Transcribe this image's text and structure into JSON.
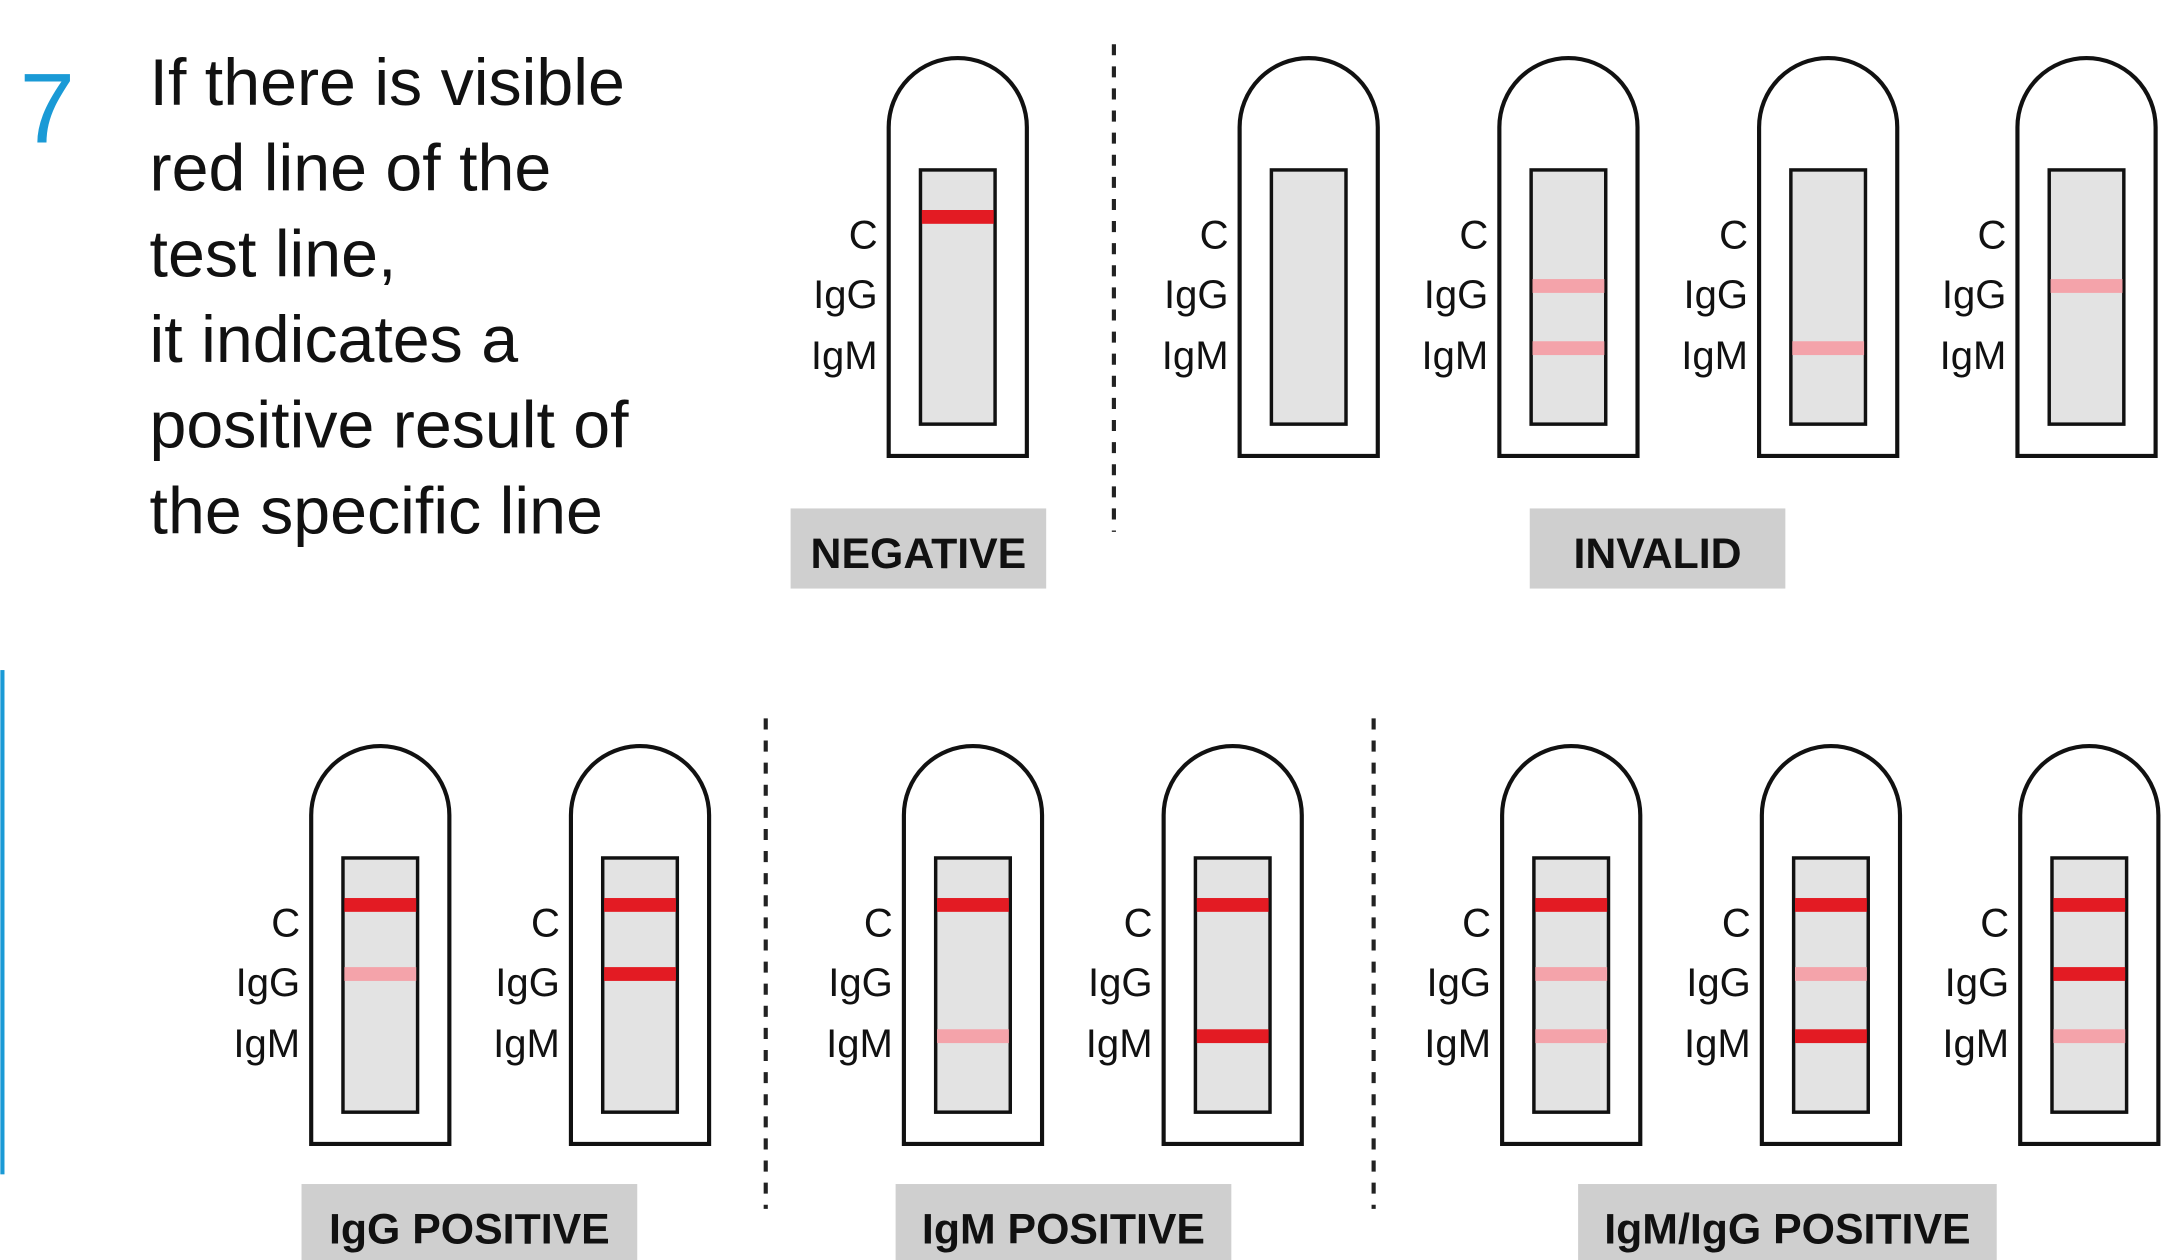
{
  "step": "7",
  "instructions": [
    "If there is visible",
    "red line of the",
    "test line,",
    "it indicates a",
    "positive result of",
    "the specific line"
  ],
  "groups": [
    {
      "label": "NEGATIVE",
      "cassettes": [
        {
          "labels": [
            "C",
            "IgG",
            "IgM"
          ],
          "bands": [
            "strong",
            null,
            null
          ]
        }
      ]
    },
    {
      "label": "INVALID",
      "cassettes": [
        {
          "labels": [
            "C",
            "IgG",
            "IgM"
          ],
          "bands": [
            null,
            null,
            null
          ]
        },
        {
          "labels": [
            "C",
            "IgG",
            "IgM"
          ],
          "bands": [
            null,
            "faint",
            "faint"
          ]
        },
        {
          "labels": [
            "C",
            "IgG",
            "IgM"
          ],
          "bands": [
            null,
            null,
            "faint"
          ]
        },
        {
          "labels": [
            "C",
            "IgG",
            "IgM"
          ],
          "bands": [
            null,
            "faint",
            null
          ]
        }
      ]
    },
    {
      "label": "IgG POSITIVE",
      "cassettes": [
        {
          "labels": [
            "C",
            "IgG",
            "IgM"
          ],
          "bands": [
            "strong",
            "faint",
            null
          ]
        },
        {
          "labels": [
            "C",
            "IgG",
            "IgM"
          ],
          "bands": [
            "strong",
            "strong",
            null
          ]
        }
      ]
    },
    {
      "label": "IgM POSITIVE",
      "cassettes": [
        {
          "labels": [
            "C",
            "IgG",
            "IgM"
          ],
          "bands": [
            "strong",
            null,
            "faint"
          ]
        },
        {
          "labels": [
            "C",
            "IgG",
            "IgM"
          ],
          "bands": [
            "strong",
            null,
            "strong"
          ]
        }
      ]
    },
    {
      "label": "IgM/IgG POSITIVE",
      "cassettes": [
        {
          "labels": [
            "C",
            "IgG",
            "IgM"
          ],
          "bands": [
            "strong",
            "faint",
            "faint"
          ]
        },
        {
          "labels": [
            "C",
            "IgG",
            "IgM"
          ],
          "bands": [
            "strong",
            "faint",
            "strong"
          ]
        },
        {
          "labels": [
            "C",
            "IgG",
            "IgM"
          ],
          "bands": [
            "strong",
            "strong",
            "faint"
          ]
        }
      ]
    }
  ]
}
